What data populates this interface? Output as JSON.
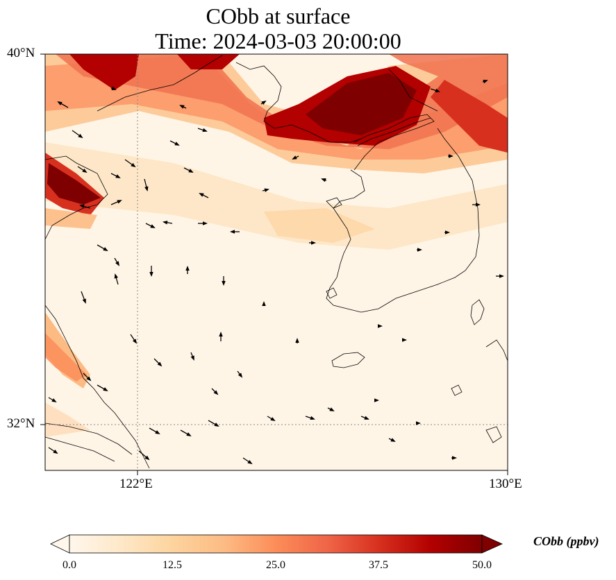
{
  "title": {
    "line1": "CObb at surface",
    "line2": "Time: 2024-03-03 20:00:00"
  },
  "map": {
    "extent": {
      "lon_min": 120,
      "lon_max": 130,
      "lat_min": 31,
      "lat_max": 40
    },
    "gridlines": {
      "lons": [
        122
      ],
      "lats": [
        32
      ],
      "style": "dotted"
    },
    "x_ticks": [
      "122°E",
      "130°E"
    ],
    "y_ticks": [
      "40°N",
      "32°N"
    ],
    "field": "CObb surface concentration, smooth plume bands (heavy plume over northern Yellow Sea / Liaodong coast, secondary plume over Shandong north coast, light coastal band near Jiangsu)",
    "wind_vectors": "quiver arrows, mostly northwesterly/westerly flow",
    "coastlines": true
  },
  "colorbar": {
    "label": "CObb (ppbv)",
    "cmap": "OrRd",
    "min": 0.0,
    "max": 50.0,
    "ticks": [
      "0.0",
      "12.5",
      "25.0",
      "37.5",
      "50.0"
    ],
    "extend": "both",
    "colors": [
      "#fff7ec",
      "#fee8c8",
      "#fdd49e",
      "#fdbb84",
      "#fc8d59",
      "#ef6548",
      "#d7301f",
      "#b30000",
      "#7f0000"
    ]
  }
}
